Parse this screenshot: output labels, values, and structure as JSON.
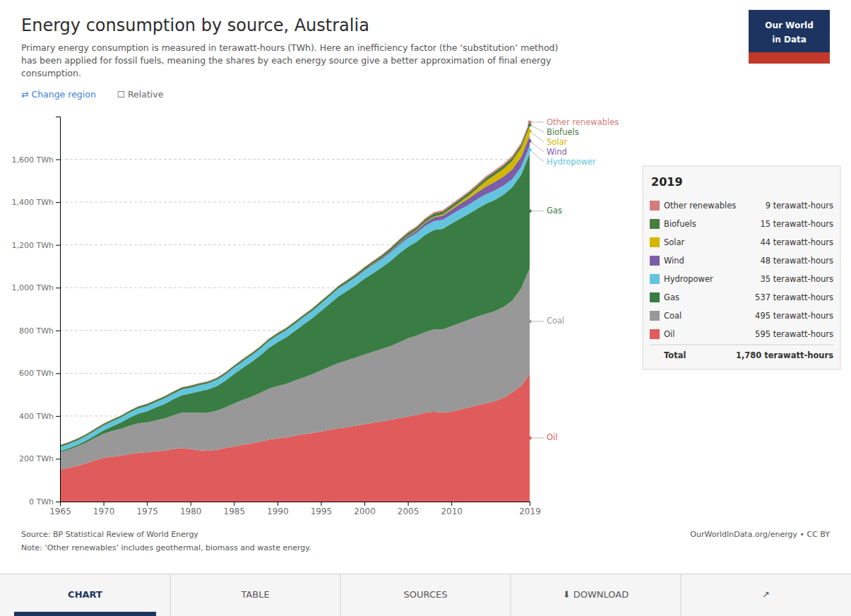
{
  "chart_data": {
    "type": "area",
    "stacked": true,
    "grid": true,
    "title": "Energy consumption by source, Australia",
    "subtitle": [
      "Primary energy consumption is measured in terawatt-hours (TWh). Here an inefficiency factor (the ‘substitution’ method)",
      "has been applied for fossil fuels, meaning the shares by each energy source give a better approximation of final energy",
      "consumption."
    ],
    "controls": [
      "⇄ Change region",
      "☐ Relative"
    ],
    "logo": [
      "Our World",
      "in Data"
    ],
    "source": "Source: BP Statistical Review of World Energy",
    "note": "Note: ‘Other renewables’ includes geothermal, biomass and waste energy.",
    "url": "OurWorldInData.org/energy • CC BY",
    "nav": [
      "CHART",
      "TABLE",
      "SOURCES",
      "⬇ DOWNLOAD",
      "↗"
    ],
    "x": [
      1965,
      1966,
      1967,
      1968,
      1969,
      1970,
      1971,
      1972,
      1973,
      1974,
      1975,
      1976,
      1977,
      1978,
      1979,
      1980,
      1981,
      1982,
      1983,
      1984,
      1985,
      1986,
      1987,
      1988,
      1989,
      1990,
      1991,
      1992,
      1993,
      1994,
      1995,
      1996,
      1997,
      1998,
      1999,
      2000,
      2001,
      2002,
      2003,
      2004,
      2005,
      2006,
      2007,
      2008,
      2009,
      2010,
      2011,
      2012,
      2013,
      2014,
      2015,
      2016,
      2017,
      2018,
      2019
    ],
    "series": [
      {
        "name": "Oil",
        "color": "#e05c5c",
        "values": [
          150,
          158,
          168,
          178,
          192,
          205,
          210,
          215,
          222,
          228,
          230,
          235,
          238,
          245,
          250,
          245,
          240,
          238,
          242,
          250,
          258,
          265,
          272,
          280,
          290,
          295,
          300,
          308,
          315,
          320,
          328,
          335,
          342,
          348,
          355,
          362,
          368,
          375,
          382,
          390,
          398,
          405,
          415,
          420,
          415,
          420,
          430,
          440,
          450,
          460,
          470,
          485,
          510,
          540,
          595
        ]
      },
      {
        "name": "Coal",
        "color": "#989898",
        "values": [
          80,
          85,
          90,
          98,
          105,
          112,
          120,
          125,
          132,
          138,
          140,
          145,
          150,
          158,
          165,
          170,
          175,
          178,
          182,
          190,
          200,
          210,
          218,
          228,
          238,
          245,
          250,
          258,
          265,
          275,
          285,
          295,
          305,
          312,
          318,
          325,
          332,
          338,
          345,
          355,
          365,
          370,
          378,
          385,
          390,
          400,
          405,
          410,
          415,
          418,
          420,
          425,
          430,
          455,
          495
        ]
      },
      {
        "name": "Gas",
        "color": "#3a7d44",
        "values": [
          5,
          6,
          7,
          9,
          12,
          16,
          22,
          30,
          38,
          45,
          52,
          60,
          68,
          75,
          82,
          90,
          100,
          108,
          115,
          125,
          138,
          150,
          162,
          175,
          190,
          205,
          218,
          232,
          248,
          262,
          278,
          295,
          312,
          325,
          338,
          355,
          368,
          382,
          398,
          415,
          428,
          440,
          455,
          465,
          470,
          480,
          488,
          495,
          505,
          515,
          520,
          525,
          530,
          532,
          537
        ]
      },
      {
        "name": "Hydropower",
        "color": "#62c4de",
        "values": [
          20,
          20,
          21,
          21,
          22,
          22,
          23,
          23,
          24,
          24,
          25,
          25,
          26,
          26,
          27,
          27,
          28,
          28,
          29,
          29,
          30,
          30,
          31,
          31,
          32,
          32,
          33,
          33,
          34,
          34,
          35,
          35,
          36,
          36,
          37,
          37,
          38,
          38,
          39,
          39,
          40,
          40,
          41,
          41,
          42,
          42,
          43,
          43,
          44,
          44,
          45,
          42,
          38,
          36,
          35
        ]
      },
      {
        "name": "Wind",
        "color": "#7b5ea7",
        "values": [
          0,
          0,
          0,
          0,
          0,
          0,
          0,
          0,
          0,
          0,
          0,
          0,
          0,
          0,
          0,
          0,
          0,
          0,
          0,
          0,
          0,
          0,
          0,
          0,
          0,
          0,
          0,
          0,
          0,
          0,
          0,
          0,
          1,
          1,
          2,
          3,
          4,
          5,
          6,
          8,
          10,
          12,
          15,
          18,
          20,
          23,
          26,
          30,
          33,
          36,
          40,
          43,
          45,
          47,
          48
        ]
      },
      {
        "name": "Solar",
        "color": "#d4b600",
        "values": [
          0,
          0,
          0,
          0,
          0,
          0,
          0,
          0,
          0,
          0,
          0,
          0,
          0,
          0,
          0,
          0,
          0,
          0,
          0,
          0,
          0,
          0,
          0,
          0,
          0,
          0,
          0,
          0,
          0,
          0,
          0,
          0,
          0,
          0,
          0,
          0,
          1,
          1,
          1,
          2,
          2,
          2,
          3,
          4,
          5,
          6,
          8,
          12,
          18,
          26,
          32,
          36,
          40,
          42,
          44
        ]
      },
      {
        "name": "Biofuels",
        "color": "#4a7c3f",
        "values": [
          8,
          8,
          8,
          8,
          8,
          8,
          8,
          8,
          8,
          9,
          9,
          9,
          9,
          9,
          9,
          9,
          9,
          9,
          9,
          9,
          9,
          10,
          10,
          10,
          10,
          10,
          10,
          10,
          10,
          11,
          11,
          11,
          11,
          12,
          12,
          12,
          12,
          12,
          13,
          13,
          13,
          13,
          13,
          14,
          14,
          14,
          14,
          14,
          14,
          15,
          15,
          15,
          15,
          15,
          15
        ]
      },
      {
        "name": "Other renewables",
        "color": "#d47c7c",
        "values": [
          2,
          2,
          2,
          2,
          2,
          2,
          2,
          2,
          2,
          2,
          2,
          2,
          2,
          2,
          2,
          2,
          2,
          2,
          2,
          2,
          2,
          2,
          2,
          2,
          2,
          2,
          2,
          2,
          2,
          2,
          2,
          2,
          2,
          3,
          3,
          3,
          3,
          3,
          4,
          4,
          5,
          5,
          5,
          6,
          6,
          6,
          7,
          7,
          7,
          8,
          8,
          8,
          9,
          9,
          9
        ]
      }
    ],
    "xlim": [
      1965,
      2019
    ],
    "xticks": [
      1965,
      1970,
      1975,
      1980,
      1985,
      1990,
      1995,
      2000,
      2005,
      2010,
      2019
    ],
    "ylim": [
      0,
      1800
    ],
    "yticks": [
      {
        "value": 0,
        "label": "0 TWh"
      },
      {
        "value": 200,
        "label": "200 TWh"
      },
      {
        "value": 400,
        "label": "400 TWh"
      },
      {
        "value": 600,
        "label": "600 TWh"
      },
      {
        "value": 800,
        "label": "800 TWh"
      },
      {
        "value": 1000,
        "label": "1,000 TWh"
      },
      {
        "value": 1200,
        "label": "1,200 TWh"
      },
      {
        "value": 1400,
        "label": "1,400 TWh"
      },
      {
        "value": 1600,
        "label": "1,600 TWh"
      }
    ],
    "tooltip": {
      "title": "2019",
      "rows": [
        {
          "label": "Other renewables",
          "value": "9 terawatt-hours"
        },
        {
          "label": "Biofuels",
          "value": "15 terawatt-hours"
        },
        {
          "label": "Solar",
          "value": "44 terawatt-hours"
        },
        {
          "label": "Wind",
          "value": "48 terawatt-hours"
        },
        {
          "label": "Hydropower",
          "value": "35 terawatt-hours"
        },
        {
          "label": "Gas",
          "value": "537 terawatt-hours"
        },
        {
          "label": "Coal",
          "value": "495 terawatt-hours"
        },
        {
          "label": "Oil",
          "value": "595 terawatt-hours"
        },
        {
          "label": "Total",
          "value": "1,780 terawatt-hours"
        }
      ]
    }
  }
}
